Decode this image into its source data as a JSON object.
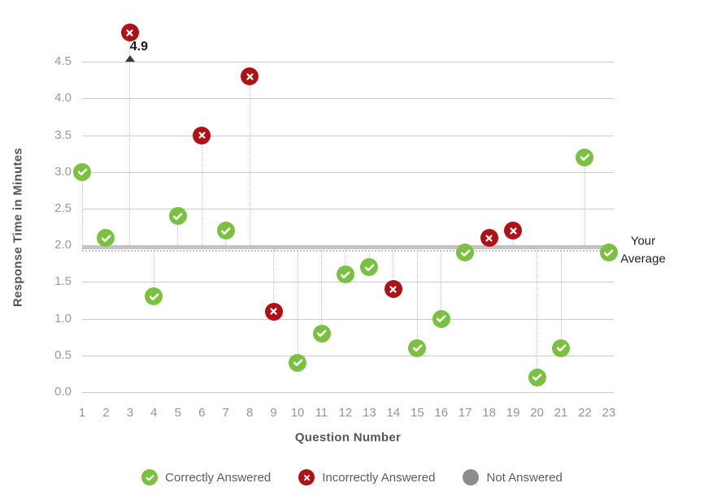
{
  "chart_data": {
    "type": "scatter",
    "title": "",
    "xlabel": "Question Number",
    "ylabel": "Response Time in Minutes",
    "x": [
      1,
      2,
      3,
      4,
      5,
      6,
      7,
      8,
      9,
      10,
      11,
      12,
      13,
      14,
      15,
      16,
      17,
      18,
      19,
      20,
      21,
      22,
      23
    ],
    "points": [
      {
        "q": 1,
        "value": 3.0,
        "status": "correct"
      },
      {
        "q": 2,
        "value": 2.1,
        "status": "correct"
      },
      {
        "q": 3,
        "value": 4.9,
        "status": "incorrect"
      },
      {
        "q": 4,
        "value": 1.3,
        "status": "correct"
      },
      {
        "q": 5,
        "value": 2.4,
        "status": "correct"
      },
      {
        "q": 6,
        "value": 3.5,
        "status": "incorrect"
      },
      {
        "q": 7,
        "value": 2.2,
        "status": "correct"
      },
      {
        "q": 8,
        "value": 4.3,
        "status": "incorrect"
      },
      {
        "q": 9,
        "value": 1.1,
        "status": "incorrect"
      },
      {
        "q": 10,
        "value": 0.4,
        "status": "correct"
      },
      {
        "q": 11,
        "value": 0.8,
        "status": "correct"
      },
      {
        "q": 12,
        "value": 1.6,
        "status": "correct"
      },
      {
        "q": 13,
        "value": 1.7,
        "status": "correct"
      },
      {
        "q": 14,
        "value": 1.4,
        "status": "incorrect"
      },
      {
        "q": 15,
        "value": 0.6,
        "status": "correct"
      },
      {
        "q": 16,
        "value": 1.0,
        "status": "correct"
      },
      {
        "q": 17,
        "value": 1.9,
        "status": "correct"
      },
      {
        "q": 18,
        "value": 2.1,
        "status": "incorrect"
      },
      {
        "q": 19,
        "value": 2.2,
        "status": "incorrect"
      },
      {
        "q": 20,
        "value": 0.2,
        "status": "correct"
      },
      {
        "q": 21,
        "value": 0.6,
        "status": "correct"
      },
      {
        "q": 22,
        "value": 3.2,
        "status": "correct"
      },
      {
        "q": 23,
        "value": 1.9,
        "status": "correct"
      }
    ],
    "yticks": [
      "0.0",
      "0.5",
      "1.0",
      "1.5",
      "2.0",
      "2.5",
      "3.0",
      "3.5",
      "4.0",
      "4.5"
    ],
    "ylim": [
      0,
      5.1
    ],
    "grid": true,
    "annotation": {
      "q": 3,
      "label": "4.9"
    },
    "average": {
      "label_lines": [
        "Your",
        "Average"
      ],
      "line_value": 1.98,
      "dotted_line_value": 1.92
    },
    "legend_position": "bottom",
    "legend": [
      {
        "label": "Correctly Answered",
        "status": "correct"
      },
      {
        "label": "Incorrectly Answered",
        "status": "incorrect"
      },
      {
        "label": "Not Answered",
        "status": "not_answered"
      }
    ],
    "colors": {
      "correct": "#7AC142",
      "incorrect": "#B01117",
      "not_answered": "#8C8C8C",
      "gridline": "#CBCBCB",
      "average_line": "#C3C3C3",
      "tick_text": "#999999",
      "axis_title_text": "#555555",
      "dark_text": "#1C1C1C"
    }
  }
}
